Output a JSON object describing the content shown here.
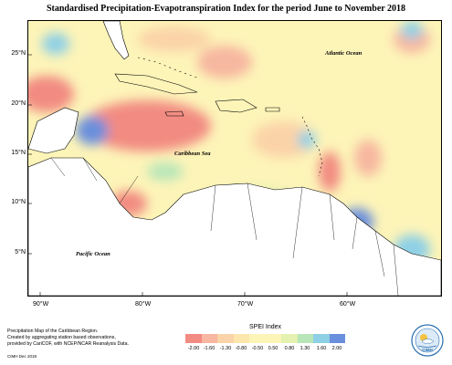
{
  "title": "Standardised Precipitation-Evapotranspiration Index for the period June to November 2018",
  "map": {
    "lat_ticks": [
      "25°N",
      "20°N",
      "15°N",
      "10°N",
      "5°N"
    ],
    "lon_ticks": [
      "90°W",
      "80°W",
      "70°W",
      "60°W"
    ],
    "labels": {
      "atlantic": "Atlantic Ocean",
      "caribbean": "Caribbean Sea",
      "pacific": "Pacific Ocean"
    },
    "colors": {
      "background_neutral": "#fdf4b8"
    }
  },
  "legend": {
    "title": "SPEI Index",
    "ticks": [
      "-2.00",
      "-1.60",
      "-1.30",
      "-0.80",
      "-0.50",
      "0.50",
      "0.80",
      "1.30",
      "1.60",
      "2.00"
    ],
    "colors": [
      "#f28b82",
      "#f7b7a0",
      "#fbd3a8",
      "#fde6ac",
      "#fdf4b8",
      "#fdf4b8",
      "#e4f1b0",
      "#b8e6b8",
      "#8ed0e6",
      "#6a8fdc"
    ]
  },
  "credit": {
    "line1": "Precipitation Map of the Caribbean Region.",
    "line2": "Created by aggregating station based observations,",
    "line3": "provided by CariCOF, with NCEP/NCAR Reanalysis Data.",
    "line4": "CIMH Dec 2018"
  },
  "logo_text": "CIMH"
}
